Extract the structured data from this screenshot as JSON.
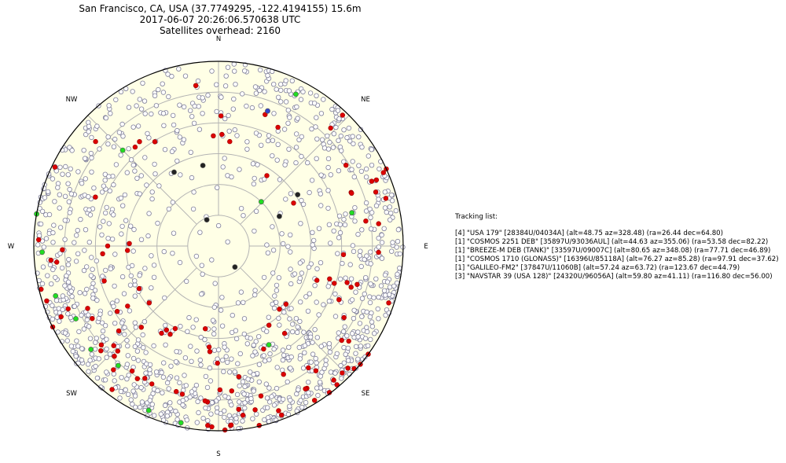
{
  "header": {
    "location": "San Francisco, CA, USA (37.7749295, -122.4194155) 15.6m",
    "timestamp": "2017-06-07 20:26:06.570638 UTC",
    "overhead": "Satellites overhead: 2160"
  },
  "directions": {
    "n": "N",
    "ne": "NE",
    "e": "E",
    "se": "SE",
    "s": "S",
    "sw": "SW",
    "w": "W",
    "nw": "NW"
  },
  "tracking": {
    "title": "Tracking list:",
    "items": [
      "[4] \"USA 179\" [28384U/04034A] (alt=48.75 az=328.48) (ra=26.44 dec=64.80)",
      "[1] \"COSMOS 2251 DEB\" [35897U/93036AUL] (alt=44.63 az=355.06) (ra=53.58 dec=82.22)",
      "[1] \"BREEZE-M DEB (TANK)\" [33597U/09007C] (alt=80.65 az=348.08) (ra=77.71 dec=46.89)",
      "[1] \"COSMOS 1710 (GLONASS)\" [16396U/85118A] (alt=76.27 az=85.28) (ra=97.91 dec=37.62)",
      "[1] \"GALILEO-FM2\" [37847U/11060B] (alt=57.24 az=63.72) (ra=123.67 dec=44.79)",
      "[3] \"NAVSTAR 39 (USA 128)\" [24320U/96056A] (alt=59.80 az=41.11) (ra=116.80 dec=56.00)"
    ]
  },
  "colors": {
    "plot_background": "#ffffe6",
    "grid": "#b3b3b3",
    "border": "#000000",
    "satellite_default": "#ffffff",
    "satellite_edge": "#7f7f99",
    "satellite_red": "#dd0000",
    "satellite_green": "#22dd22",
    "satellite_black": "#222222",
    "satellite_blue": "#3344cc"
  },
  "chart_data": {
    "type": "scatter",
    "projection": "polar-sky",
    "radial_axis": "altitude (deg), 90 at center, 0 at horizon",
    "altitude_rings": [
      15,
      30,
      45,
      60,
      75
    ],
    "azimuth_spokes": [
      0,
      45,
      90,
      135,
      180,
      225,
      270,
      315
    ],
    "grid": true,
    "series": [
      {
        "color": "#222222",
        "points": [
          {
            "az": 336,
            "alt": 76
          },
          {
            "az": 329,
            "alt": 48
          },
          {
            "az": 349,
            "alt": 50
          },
          {
            "az": 64,
            "alt": 57
          },
          {
            "az": 57,
            "alt": 44
          },
          {
            "az": 142,
            "alt": 77
          }
        ]
      },
      {
        "color": "#3344cc",
        "points": [
          {
            "az": 20,
            "alt": 20
          }
        ]
      },
      {
        "color": "#22dd22",
        "points": [
          {
            "az": 27,
            "alt": 7
          },
          {
            "az": 315,
            "alt": 24
          },
          {
            "az": 44,
            "alt": 60
          },
          {
            "az": 76,
            "alt": 23
          },
          {
            "az": 203,
            "alt": 3
          },
          {
            "az": 231,
            "alt": 10
          },
          {
            "az": 243,
            "alt": 12
          },
          {
            "az": 253,
            "alt": 7
          },
          {
            "az": 268,
            "alt": 4
          },
          {
            "az": 280,
            "alt": 0
          },
          {
            "az": 192,
            "alt": 2
          },
          {
            "az": 153,
            "alt": 36
          },
          {
            "az": 220,
            "alt": 14
          }
        ]
      }
    ]
  }
}
